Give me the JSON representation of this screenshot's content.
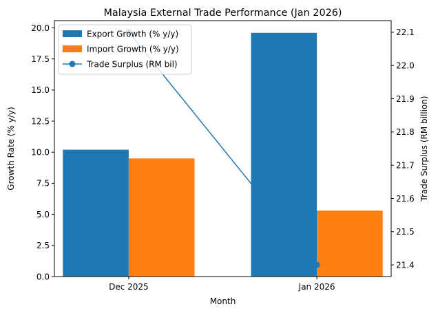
{
  "chart_data": {
    "type": "bar+line",
    "title": "Malaysia External Trade Performance (Jan 2026)",
    "xlabel": "Month",
    "ylabel_left": "Growth Rate (% y/y)",
    "ylabel_right": "Trade Surplus (RM billion)",
    "categories": [
      "Dec 2025",
      "Jan 2026"
    ],
    "ylim_left": [
      0,
      20.58
    ],
    "yticks_left": [
      0,
      2.5,
      5,
      7.5,
      10,
      12.5,
      15,
      17.5,
      20
    ],
    "yticklabels_left": [
      "0.0",
      "2.5",
      "5.0",
      "7.5",
      "10.0",
      "12.5",
      "15.0",
      "17.5",
      "20.0"
    ],
    "ylim_right": [
      21.365,
      22.135
    ],
    "yticks_right": [
      21.4,
      21.5,
      21.6,
      21.7,
      21.8,
      21.9,
      22.0,
      22.1
    ],
    "yticklabels_right": [
      "21.4",
      "21.5",
      "21.6",
      "21.7",
      "21.8",
      "21.9",
      "22.0",
      "22.1"
    ],
    "bar_series": [
      {
        "name": "Export Growth (% y/y)",
        "color": "#1f77b4",
        "values": [
          10.2,
          19.6
        ]
      },
      {
        "name": "Import Growth (% y/y)",
        "color": "#ff7f0e",
        "values": [
          9.5,
          5.3
        ]
      }
    ],
    "line_series": {
      "name": "Trade Surplus (RM bil)",
      "color": "#1f77b4",
      "values": [
        22.1,
        21.4
      ]
    },
    "legend_position": "upper-left",
    "legend": [
      {
        "label": "Export Growth (% y/y)",
        "kind": "bar",
        "color": "#1f77b4"
      },
      {
        "label": "Import Growth (% y/y)",
        "kind": "bar",
        "color": "#ff7f0e"
      },
      {
        "label": "Trade Surplus (RM bil)",
        "kind": "line",
        "color": "#1f77b4"
      }
    ]
  }
}
